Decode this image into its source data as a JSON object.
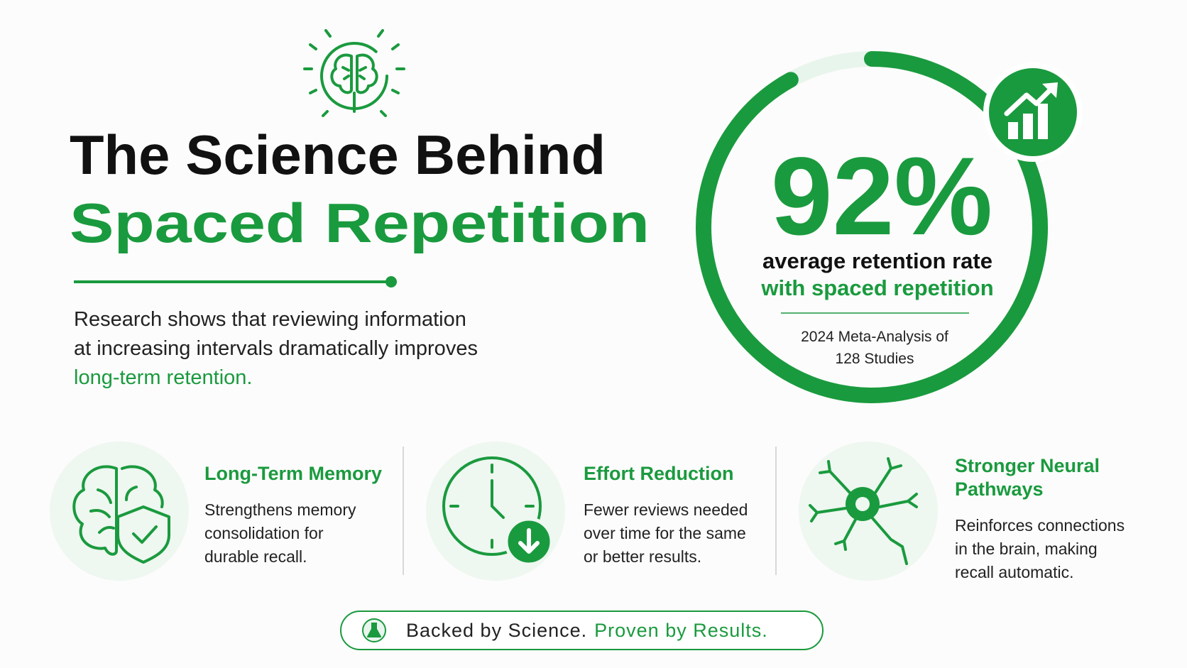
{
  "header": {
    "title_line1": "The Science Behind",
    "title_line2": "Spaced Repetition"
  },
  "intro": {
    "lines": [
      "Research shows that reviewing information",
      "at increasing intervals dramatically improves",
      "long-term retention."
    ]
  },
  "stat": {
    "value": 92,
    "label": "92%",
    "caption_line1": "average retention rate",
    "caption_line2": "with spaced repetition",
    "source_lines": [
      "2024 Meta-Analysis of",
      "128 Studies"
    ]
  },
  "features": [
    {
      "title_lines": [
        "Long-Term Memory"
      ],
      "desc_lines": [
        "Strengthens memory",
        "consolidation for",
        "durable recall."
      ]
    },
    {
      "title_lines": [
        "Effort Reduction"
      ],
      "desc_lines": [
        "Fewer reviews needed",
        "over time for the same",
        "or better results."
      ]
    },
    {
      "title_lines": [
        "Stronger Neural",
        "Pathways"
      ],
      "desc_lines": [
        "Reinforces connections",
        "in the brain, making",
        "recall automatic."
      ]
    }
  ],
  "footer": {
    "part1": "Backed by Science.",
    "part2": "Proven by Results."
  }
}
